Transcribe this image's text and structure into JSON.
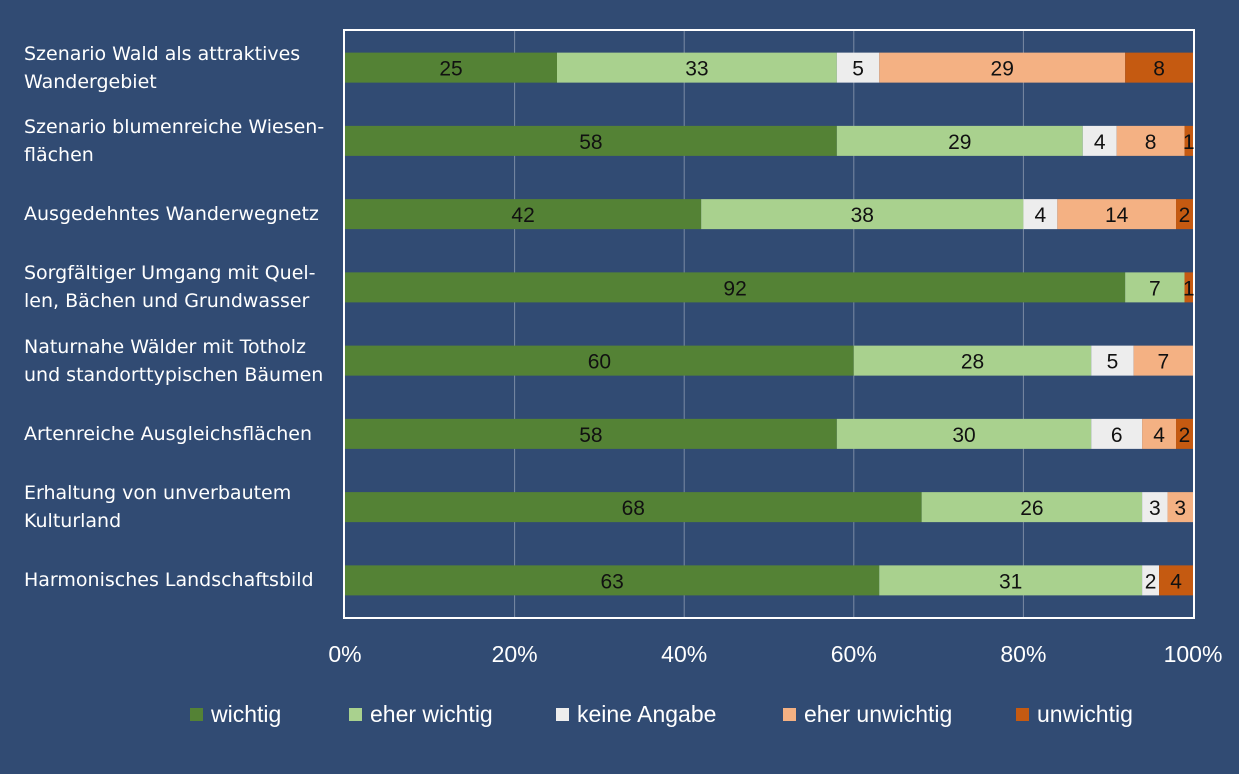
{
  "chart_data": {
    "type": "bar",
    "orientation": "horizontal",
    "stacked": true,
    "categories": [
      [
        "Szenario Wald als attraktives",
        "Wandergebiet"
      ],
      [
        "Szenario blumenreiche Wiesen-",
        "flächen"
      ],
      [
        "Ausgedehntes Wanderwegnetz"
      ],
      [
        "Sorgfältiger Umgang mit Quel-",
        "len, Bächen und Grundwasser"
      ],
      [
        "Naturnahe Wälder mit Totholz",
        "und standorttypischen Bäumen"
      ],
      [
        "Artenreiche Ausgleichsflächen"
      ],
      [
        "Erhaltung von unverbautem",
        "Kulturland"
      ],
      [
        "Harmonisches Landschaftsbild"
      ]
    ],
    "series": [
      {
        "name": "wichtig",
        "color": "#548235",
        "values": [
          25,
          58,
          42,
          92,
          60,
          58,
          68,
          63
        ]
      },
      {
        "name": "eher wichtig",
        "color": "#a9d18e",
        "values": [
          33,
          29,
          38,
          7,
          28,
          30,
          26,
          31
        ]
      },
      {
        "name": "keine Angabe",
        "color": "#ededed",
        "values": [
          5,
          4,
          4,
          0,
          5,
          6,
          3,
          2
        ]
      },
      {
        "name": "eher unwichtig",
        "color": "#f4b183",
        "values": [
          29,
          8,
          14,
          0,
          7,
          4,
          3,
          0
        ]
      },
      {
        "name": "unwichtig",
        "color": "#c55a11",
        "values": [
          8,
          1,
          2,
          1,
          0,
          2,
          0,
          4
        ]
      }
    ],
    "xticks": [
      "0%",
      "20%",
      "40%",
      "60%",
      "80%",
      "100%"
    ],
    "xlim": [
      0,
      100
    ],
    "grid": true,
    "legend": "bottom"
  }
}
